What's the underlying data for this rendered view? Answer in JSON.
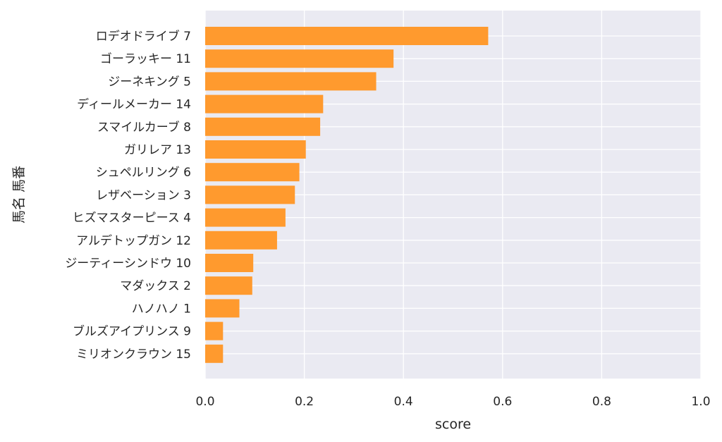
{
  "chart_data": {
    "type": "bar",
    "orientation": "horizontal",
    "categories": [
      "ロデオドライブ 7",
      "ゴーラッキー 11",
      "ジーネキング 5",
      "ディールメーカー 14",
      "スマイルカーブ 8",
      "ガリレア 13",
      "シュペルリング 6",
      "レザベーション 3",
      "ヒズマスターピース 4",
      "アルデトップガン 12",
      "ジーティーシンドウ 10",
      "マダックス 2",
      "ハノハノ 1",
      "ブルズアイプリンス 9",
      "ミリオンクラウン 15"
    ],
    "values": [
      0.571,
      0.38,
      0.345,
      0.238,
      0.232,
      0.203,
      0.19,
      0.181,
      0.162,
      0.145,
      0.097,
      0.095,
      0.069,
      0.036,
      0.036
    ],
    "xlabel": "score",
    "ylabel": "馬名 馬番",
    "xlim": [
      0.0,
      1.0
    ],
    "xticks": [
      "0.0",
      "0.2",
      "0.4",
      "0.6",
      "0.8",
      "1.0"
    ],
    "grid": true,
    "colors": {
      "bar": "#ff9a2e",
      "plot_bg": "#eaeaf2",
      "grid": "#ffffff",
      "text": "#262626"
    }
  }
}
